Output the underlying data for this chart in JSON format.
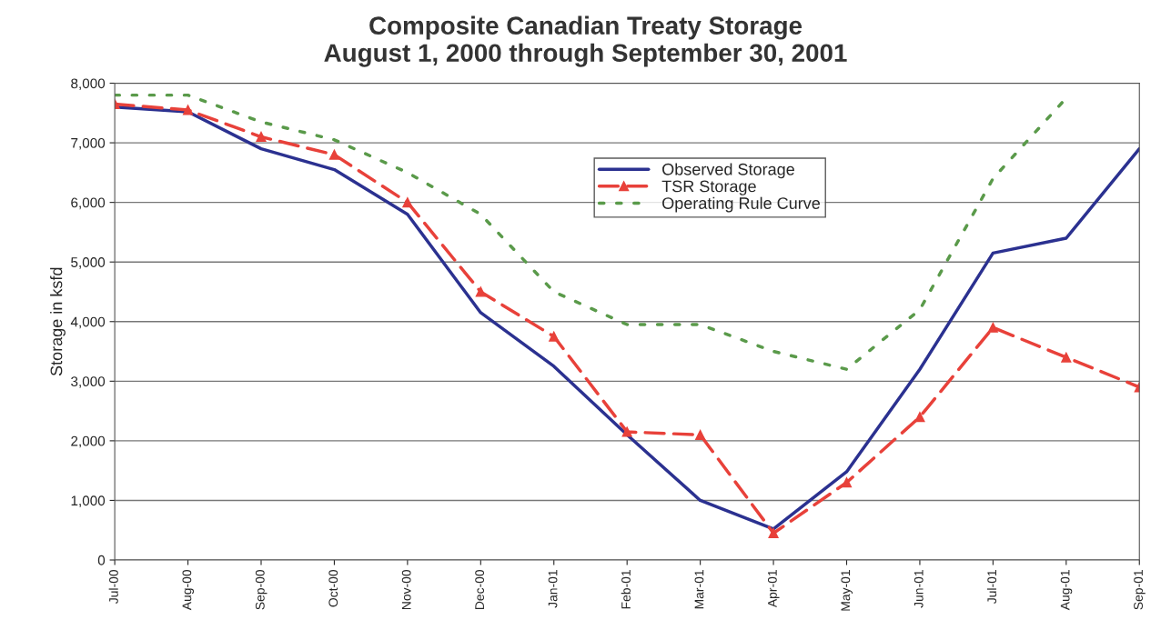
{
  "chart_data": {
    "type": "line",
    "title": "Composite Canadian Treaty Storage\nAugust 1, 2000 through September 30, 2001",
    "ylabel": "Storage in ksfd",
    "categories": [
      "Jul-00",
      "Aug-00",
      "Sep-00",
      "Oct-00",
      "Nov-00",
      "Dec-00",
      "Jan-01",
      "Feb-01",
      "Mar-01",
      "Apr-01",
      "May-01",
      "Jun-01",
      "Jul-01",
      "Aug-01",
      "Sep-01"
    ],
    "series": [
      {
        "name": "Observed Storage",
        "color": "#2b3190",
        "line_style": "solid",
        "marker": "none",
        "values": [
          7600,
          7520,
          6900,
          6550,
          5800,
          4150,
          3250,
          2100,
          1000,
          520,
          1480,
          3200,
          5150,
          5400,
          6900
        ]
      },
      {
        "name": "TSR Storage",
        "color": "#e8413a",
        "line_style": "dashed",
        "marker": "triangle",
        "values": [
          7650,
          7550,
          7100,
          6800,
          6000,
          4500,
          3750,
          2150,
          2100,
          450,
          1300,
          2400,
          3900,
          3400,
          2900
        ]
      },
      {
        "name": "Operating Rule Curve",
        "color": "#5a9a4a",
        "line_style": "dotted",
        "marker": "none",
        "values": [
          7800,
          7800,
          7350,
          7050,
          6500,
          5800,
          4500,
          3950,
          3950,
          3500,
          3200,
          4200,
          6400,
          7750,
          null
        ]
      }
    ],
    "ylim": [
      0,
      8000
    ],
    "yticks": [
      {
        "value": 0,
        "label": "0"
      },
      {
        "value": 1000,
        "label": "1,000"
      },
      {
        "value": 2000,
        "label": "2,000"
      },
      {
        "value": 3000,
        "label": "3,000"
      },
      {
        "value": 4000,
        "label": "4,000"
      },
      {
        "value": 5000,
        "label": "5,000"
      },
      {
        "value": 6000,
        "label": "6,000"
      },
      {
        "value": 7000,
        "label": "7,000"
      },
      {
        "value": 8000,
        "label": "8,000"
      }
    ],
    "grid": "y",
    "legend": "top right"
  }
}
